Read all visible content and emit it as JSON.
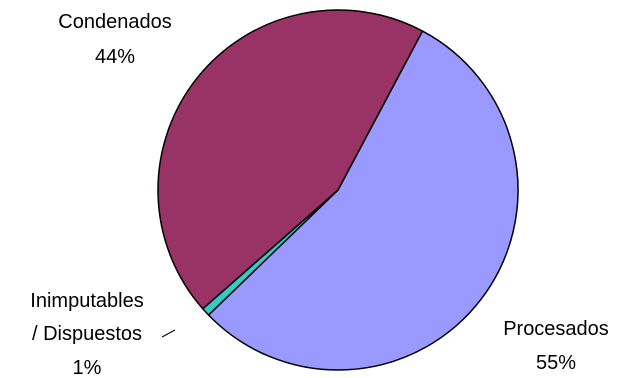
{
  "chart_data": {
    "type": "pie",
    "title": "",
    "start_angle_deg": 28,
    "slices": [
      {
        "label": "Procesados",
        "pct_label": "55%",
        "value": 55,
        "color": "#9999ff"
      },
      {
        "label": "Inimputables",
        "label2": "/ Dispuestos",
        "pct_label": "1%",
        "value": 0.75,
        "color": "#33cccc"
      },
      {
        "label": "Condenados",
        "pct_label": "44%",
        "value": 44.25,
        "color": "#993366"
      }
    ]
  }
}
